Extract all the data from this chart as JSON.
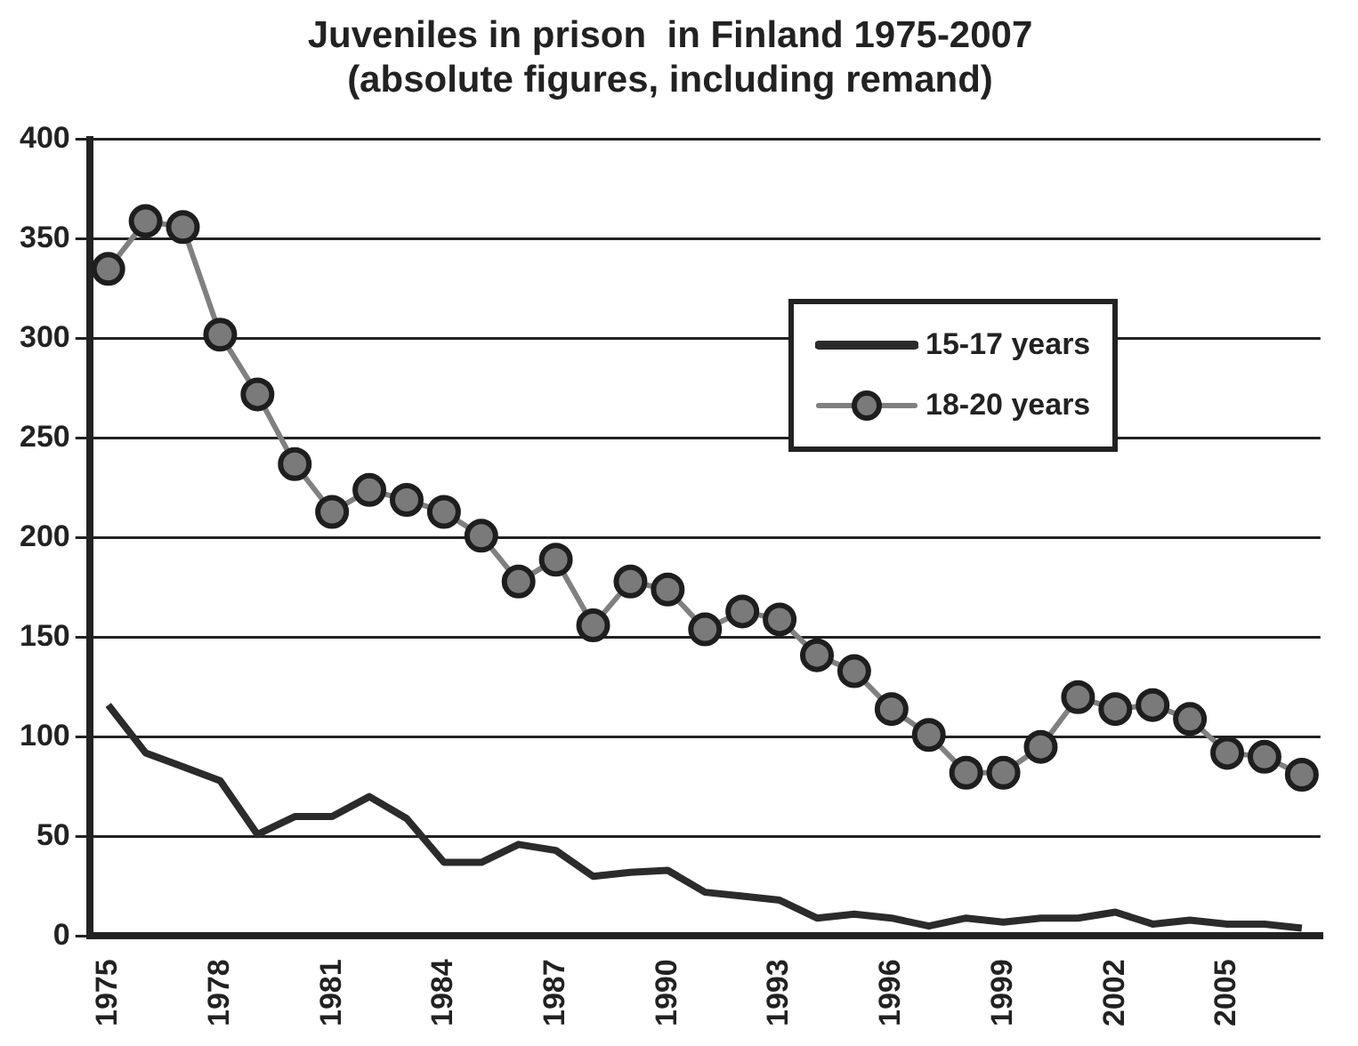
{
  "chart_data": {
    "type": "line",
    "title": [
      "Juveniles in prison  in Finland 1975-2007",
      "(absolute figures, including remand)"
    ],
    "categories": [
      "1975",
      null,
      null,
      "1978",
      null,
      null,
      "1981",
      null,
      null,
      "1984",
      null,
      null,
      "1987",
      null,
      null,
      "1990",
      null,
      null,
      "1993",
      null,
      null,
      "1996",
      null,
      null,
      "1999",
      null,
      null,
      "2002",
      null,
      null,
      "2005",
      null,
      null
    ],
    "series": [
      {
        "name": "15-17 years",
        "color": "#2b2b2b",
        "marker": "none",
        "values": [
          116,
          92,
          85,
          78,
          51,
          60,
          60,
          70,
          59,
          37,
          37,
          46,
          43,
          30,
          32,
          33,
          22,
          20,
          18,
          9,
          11,
          9,
          5,
          9,
          7,
          9,
          9,
          12,
          6,
          8,
          6,
          6,
          4
        ]
      },
      {
        "name": "18-20 years",
        "color": "#808080",
        "marker": "circle",
        "values": [
          335,
          359,
          356,
          302,
          272,
          237,
          213,
          224,
          219,
          213,
          201,
          178,
          189,
          156,
          178,
          174,
          154,
          163,
          159,
          141,
          133,
          114,
          101,
          82,
          82,
          95,
          120,
          114,
          116,
          109,
          92,
          90,
          81
        ]
      }
    ],
    "ylim": [
      0,
      400
    ],
    "yticks": [
      0,
      50,
      100,
      150,
      200,
      250,
      300,
      350,
      400
    ],
    "grid": "y",
    "legend": "top right"
  }
}
